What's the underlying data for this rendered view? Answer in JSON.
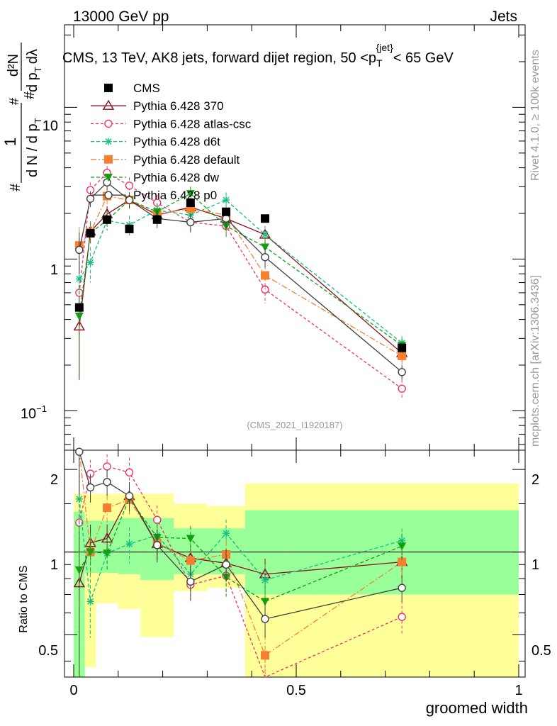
{
  "header": {
    "left": "13000 GeV pp",
    "right": "Jets",
    "side_rivet": "Rivet 4.1.0, ≥ 100k events",
    "side_mcplots": "mcplots.cern.ch [arXiv:1306.3436]",
    "analysis_id": "(CMS_2021_I1920187)"
  },
  "colors": {
    "cms": "#000000",
    "p370": "#8b0d1f",
    "atlas": "#f0306a",
    "d6t": "#10c080",
    "default": "#f58030",
    "dw": "#10a010",
    "p0": "#404040",
    "band_inner": "#99ff99",
    "band_outer": "#ffff99"
  },
  "chart_data": {
    "type": "scatter",
    "title": "CMS, 13 TeV, AK8 jets, forward dijet region, 50 <p_T^{jet}< 65 GeV",
    "title_parts": {
      "main": "CMS, 13 TeV, AK8 jets, forward dijet region, 50 <p",
      "sub": "T",
      "sup": "{jet}",
      "tail": "< 65 GeV"
    },
    "xlabel": "groomed width",
    "ylabel_main": "1/(dN/dp_T) d²N/(dp_T dλ)",
    "ylabel_main_parts": {
      "hash1": "#",
      "hash2": "#",
      "hash3": "#",
      "one": "1",
      "dN": "d N / d p",
      "T": "T",
      "d2N": "d²N",
      "dpTdl": "d p",
      "T2": "T",
      "dl": "dλ"
    },
    "ylabel_ratio": "Ratio to CMS",
    "xlim": [
      0,
      1
    ],
    "ylim_main": [
      0.055,
      35
    ],
    "ylim_ratio": [
      0.35,
      2.35
    ],
    "x_ticks": [
      "0",
      "0.5",
      "1"
    ],
    "y_ticks_main": {
      "ten": "10",
      "one": "1",
      "tenth_base": "10",
      "tenth_exp": "−1"
    },
    "y_ticks_ratio": [
      "2",
      "1",
      "0.5"
    ],
    "bin_edges": [
      0.0,
      0.025,
      0.05,
      0.1,
      0.15,
      0.225,
      0.3,
      0.385,
      0.475,
      1.0
    ],
    "bin_centers": [
      0.0125,
      0.0375,
      0.075,
      0.125,
      0.1875,
      0.2625,
      0.3425,
      0.43,
      0.7375
    ],
    "cms": {
      "name": "CMS",
      "values": [
        0.48,
        1.48,
        1.82,
        1.58,
        1.82,
        2.35,
        2.05,
        1.85,
        0.26
      ]
    },
    "band_inner": {
      "lo": [
        0.28,
        0.84,
        0.84,
        0.83,
        0.79,
        0.83,
        0.83,
        0.7,
        0.7
      ],
      "hi": [
        1.4,
        1.3,
        1.3,
        1.33,
        1.33,
        1.22,
        1.22,
        1.42,
        1.42
      ]
    },
    "band_outer": {
      "lo": [
        0.01,
        0.38,
        0.65,
        0.62,
        0.49,
        0.72,
        0.74,
        0.01,
        0.01
      ],
      "hi": [
        1.63,
        1.63,
        1.63,
        1.63,
        1.63,
        1.5,
        1.47,
        1.78,
        1.78
      ]
    },
    "series": [
      {
        "key": "p370",
        "name": "Pythia 6.428 370",
        "marker": "triangle-open",
        "dash": "",
        "values": [
          0.36,
          1.52,
          1.98,
          2.45,
          1.95,
          2.2,
          1.85,
          1.45,
          0.24
        ],
        "err": [
          0.2,
          0.25,
          0.25,
          0.3,
          0.25,
          0.25,
          0.25,
          0.2,
          0.03
        ]
      },
      {
        "key": "atlas",
        "name": "Pythia 6.428 atlas-csc",
        "marker": "circle-open",
        "dash": "4,3",
        "values": [
          0.6,
          2.85,
          3.7,
          3.05,
          2.35,
          1.75,
          1.65,
          0.63,
          0.14
        ],
        "err": [
          0.3,
          0.35,
          0.4,
          0.4,
          0.3,
          0.25,
          0.25,
          0.12,
          0.02
        ]
      },
      {
        "key": "d6t",
        "name": "Pythia 6.428 d6t",
        "marker": "star",
        "dash": "5,3",
        "values": [
          0.74,
          0.95,
          1.8,
          1.68,
          2.1,
          1.95,
          2.45,
          1.45,
          0.28
        ],
        "err": [
          0.3,
          0.25,
          0.25,
          0.25,
          0.25,
          0.25,
          0.3,
          0.2,
          0.03
        ]
      },
      {
        "key": "default",
        "name": "Pythia 6.428 default",
        "marker": "square",
        "dash": "8,3,2,3",
        "values": [
          1.23,
          1.5,
          2.6,
          2.45,
          1.98,
          2.15,
          1.95,
          0.78,
          0.23
        ],
        "err": [
          0.4,
          0.25,
          0.3,
          0.3,
          0.25,
          0.25,
          0.25,
          0.15,
          0.03
        ]
      },
      {
        "key": "dw",
        "name": "Pythia 6.428 dw",
        "marker": "triangle-down",
        "dash": "5,3",
        "values": [
          0.42,
          1.49,
          1.8,
          2.45,
          2.05,
          2.7,
          1.65,
          1.2,
          0.27
        ],
        "err": [
          0.25,
          0.25,
          0.25,
          0.3,
          0.25,
          0.3,
          0.25,
          0.18,
          0.03
        ]
      },
      {
        "key": "p0",
        "name": "Pythia 6.428 p0",
        "marker": "circle-open",
        "dash": "",
        "values": [
          1.15,
          2.5,
          3.2,
          2.45,
          1.85,
          1.75,
          1.85,
          1.03,
          0.18
        ],
        "err": [
          0.35,
          0.3,
          0.35,
          0.3,
          0.25,
          0.25,
          0.25,
          0.15,
          0.02
        ]
      }
    ],
    "ratio_values": {
      "p370": [
        0.77,
        1.08,
        1.12,
        1.6,
        1.07,
        0.95,
        0.91,
        0.83,
        0.92
      ],
      "atlas": [
        1.28,
        1.93,
        2.05,
        1.95,
        1.31,
        0.76,
        0.82,
        0.34,
        0.58
      ],
      "d6t": [
        1.56,
        0.66,
        0.99,
        1.07,
        1.15,
        0.83,
        1.17,
        0.79,
        1.1
      ],
      "default": [
        2.4,
        1.0,
        1.45,
        1.55,
        1.08,
        0.93,
        0.98,
        0.42,
        0.92
      ],
      "dw": [
        0.86,
        1.0,
        0.99,
        1.57,
        1.13,
        1.12,
        0.81,
        0.66,
        1.05
      ],
      "p0": [
        2.32,
        1.72,
        1.8,
        1.6,
        1.06,
        0.78,
        0.9,
        0.57,
        0.74
      ]
    }
  }
}
